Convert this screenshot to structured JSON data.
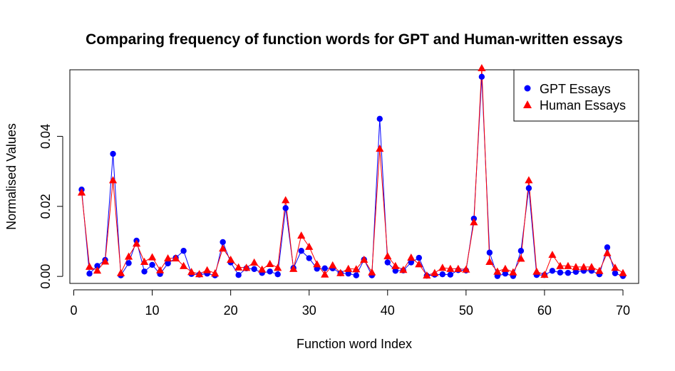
{
  "chart_data": {
    "type": "line",
    "title": "Comparing frequency of function words for GPT and Human-written essays",
    "xlabel": "Function word Index",
    "ylabel": "Normalised Values",
    "xlim": [
      -0.5,
      72
    ],
    "ylim": [
      -0.002,
      0.059
    ],
    "x_ticks": [
      "0",
      "10",
      "20",
      "30",
      "40",
      "50",
      "60",
      "70"
    ],
    "y_ticks": [
      "0.00",
      "0.02",
      "0.04"
    ],
    "legend": {
      "position": "top-right",
      "entries": [
        "GPT Essays",
        "Human Essays"
      ]
    },
    "x": [
      1,
      2,
      3,
      4,
      5,
      6,
      7,
      8,
      9,
      10,
      11,
      12,
      13,
      14,
      15,
      16,
      17,
      18,
      19,
      20,
      21,
      22,
      23,
      24,
      25,
      26,
      27,
      28,
      29,
      30,
      31,
      32,
      33,
      34,
      35,
      36,
      37,
      38,
      39,
      40,
      41,
      42,
      43,
      44,
      45,
      46,
      47,
      48,
      49,
      50,
      51,
      52,
      53,
      54,
      55,
      56,
      57,
      58,
      59,
      60,
      61,
      62,
      63,
      64,
      65,
      66,
      67,
      68,
      69,
      70
    ],
    "series": [
      {
        "name": "GPT Essays",
        "color": "#0000ff",
        "marker": "circle",
        "values": [
          0.0248,
          0.0008,
          0.003,
          0.0047,
          0.035,
          0.0003,
          0.0038,
          0.0102,
          0.0014,
          0.0033,
          0.0007,
          0.0037,
          0.0053,
          0.0073,
          0.0007,
          0.0005,
          0.0008,
          0.0003,
          0.0098,
          0.004,
          0.0004,
          0.0023,
          0.0021,
          0.001,
          0.0014,
          0.0006,
          0.0195,
          0.0024,
          0.0073,
          0.0052,
          0.0022,
          0.0023,
          0.0023,
          0.0009,
          0.0008,
          0.0003,
          0.0048,
          0.0003,
          0.045,
          0.004,
          0.0016,
          0.0017,
          0.004,
          0.0053,
          0.0002,
          0.0005,
          0.0006,
          0.0005,
          0.0018,
          0.0017,
          0.0165,
          0.057,
          0.0068,
          0.0001,
          0.0008,
          0.0001,
          0.0073,
          0.0252,
          0.0004,
          0.0004,
          0.0016,
          0.0011,
          0.001,
          0.0013,
          0.0016,
          0.0016,
          0.0006,
          0.0083,
          0.0009,
          0.0001
        ]
      },
      {
        "name": "Human Essays",
        "color": "#ff0000",
        "marker": "triangle",
        "values": [
          0.024,
          0.0028,
          0.0017,
          0.0043,
          0.0275,
          0.001,
          0.0057,
          0.0094,
          0.0042,
          0.0055,
          0.0018,
          0.0052,
          0.0052,
          0.003,
          0.0013,
          0.0007,
          0.0018,
          0.0009,
          0.008,
          0.0048,
          0.0026,
          0.0025,
          0.004,
          0.002,
          0.0036,
          0.0025,
          0.0218,
          0.0022,
          0.0117,
          0.0085,
          0.0035,
          0.0006,
          0.0032,
          0.001,
          0.0022,
          0.0021,
          0.0048,
          0.0012,
          0.0365,
          0.0058,
          0.003,
          0.0019,
          0.0054,
          0.0035,
          0.0003,
          0.001,
          0.0025,
          0.0022,
          0.0022,
          0.002,
          0.0155,
          0.0595,
          0.0042,
          0.0014,
          0.0022,
          0.0012,
          0.0051,
          0.0275,
          0.0014,
          0.0005,
          0.0062,
          0.003,
          0.003,
          0.0027,
          0.0027,
          0.0027,
          0.0016,
          0.0067,
          0.0025,
          0.001
        ]
      }
    ]
  }
}
